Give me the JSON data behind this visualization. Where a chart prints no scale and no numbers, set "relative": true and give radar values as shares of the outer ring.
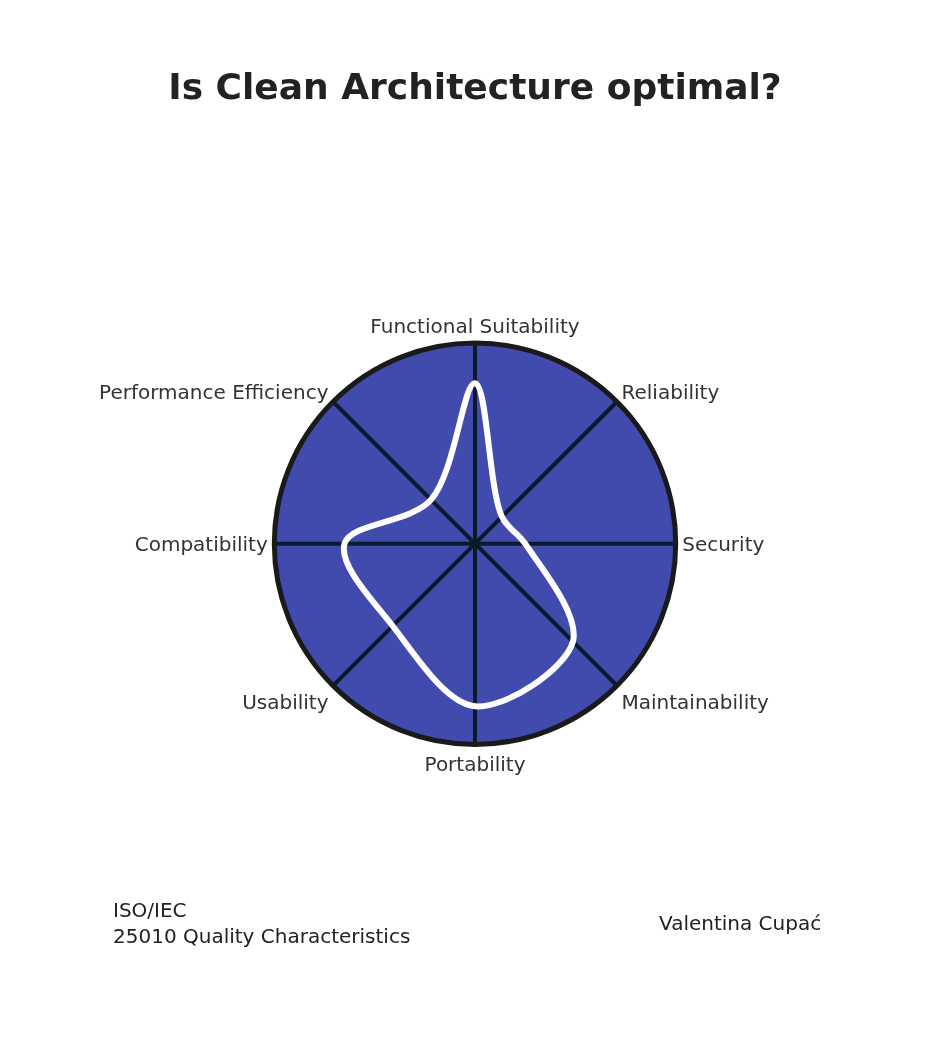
{
  "chart_data": {
    "type": "radar",
    "title": "Is Clean Architecture optimal?",
    "categories": [
      "Functional Suitability",
      "Reliability",
      "Security",
      "Maintainability",
      "Portability",
      "Usability",
      "Compatibility",
      "Performance Efficiency"
    ],
    "relative": true,
    "grid": "x",
    "line_style": "solid",
    "marker": "none",
    "series": [
      {
        "color": "#ffffff",
        "values": [
          0.8,
          0.19,
          0.25,
          0.69,
          0.81,
          0.58,
          0.65,
          0.31
        ]
      }
    ],
    "annotations": [
      "ISO/IEC 25010 Quality Characteristics",
      "Valentina Cupać"
    ]
  }
}
